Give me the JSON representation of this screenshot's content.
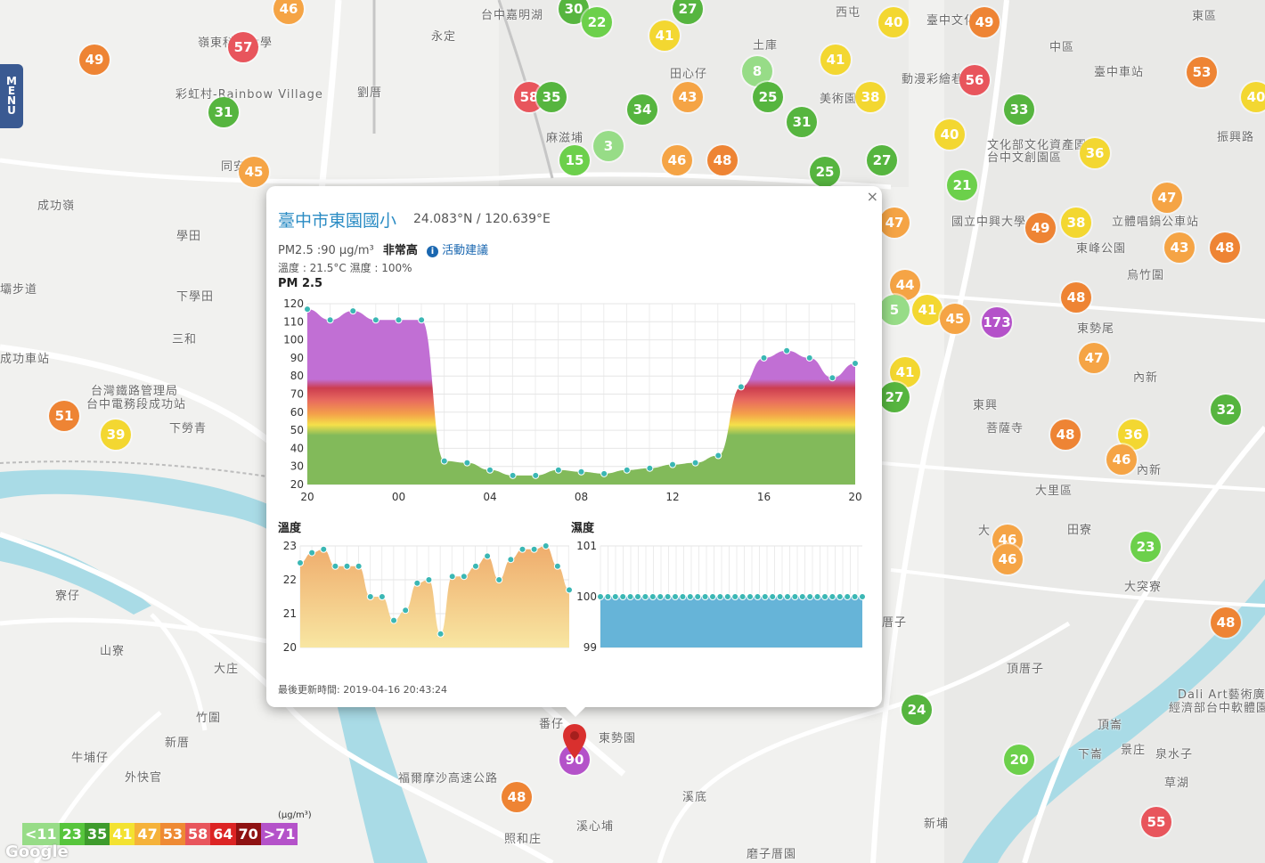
{
  "menu": {
    "letters": [
      "M",
      "E",
      "N",
      "U"
    ]
  },
  "places": [
    {
      "t": "永定",
      "x": 484,
      "y": 30
    },
    {
      "t": "台中嘉明湖",
      "x": 540,
      "y": 6
    },
    {
      "t": "西屯",
      "x": 938,
      "y": 3
    },
    {
      "t": "臺中文化",
      "x": 1040,
      "y": 12
    },
    {
      "t": "東區",
      "x": 1338,
      "y": 7
    },
    {
      "t": "中區",
      "x": 1178,
      "y": 42
    },
    {
      "t": "嶺東科技大學",
      "x": 222,
      "y": 37
    },
    {
      "t": "土庫",
      "x": 845,
      "y": 40
    },
    {
      "t": "田心仔",
      "x": 752,
      "y": 72
    },
    {
      "t": "劉厝",
      "x": 401,
      "y": 93
    },
    {
      "t": "彩虹村-Rainbow Village",
      "x": 197,
      "y": 95
    },
    {
      "t": "麻滋埔",
      "x": 613,
      "y": 144
    },
    {
      "t": "美術園",
      "x": 920,
      "y": 100
    },
    {
      "t": "動漫彩繪巷",
      "x": 1012,
      "y": 78
    },
    {
      "t": "臺中車站",
      "x": 1228,
      "y": 70
    },
    {
      "t": "振興路",
      "x": 1366,
      "y": 143
    },
    {
      "t": "文化部文化資產園區",
      "x": 1108,
      "y": 152
    },
    {
      "t": "台中文創園區",
      "x": 1108,
      "y": 166
    },
    {
      "t": "同安",
      "x": 248,
      "y": 176
    },
    {
      "t": "成功嶺",
      "x": 42,
      "y": 220
    },
    {
      "t": "學田",
      "x": 198,
      "y": 254
    },
    {
      "t": "國立中興大學",
      "x": 1068,
      "y": 238
    },
    {
      "t": "立體唱鍋公車站",
      "x": 1248,
      "y": 238
    },
    {
      "t": "東峰公園",
      "x": 1208,
      "y": 268
    },
    {
      "t": "烏竹圍",
      "x": 1265,
      "y": 298
    },
    {
      "t": "壩步道",
      "x": 0,
      "y": 314
    },
    {
      "t": "下學田",
      "x": 198,
      "y": 322
    },
    {
      "t": "三和",
      "x": 193,
      "y": 370
    },
    {
      "t": "成功車站",
      "x": 0,
      "y": 392
    },
    {
      "t": "東勢尾",
      "x": 1209,
      "y": 358
    },
    {
      "t": "內新",
      "x": 1272,
      "y": 413
    },
    {
      "t": "台灣鐵路管理局",
      "x": 102,
      "y": 428
    },
    {
      "t": "台中電務段成功站",
      "x": 97,
      "y": 443
    },
    {
      "t": "下勞青",
      "x": 190,
      "y": 470
    },
    {
      "t": "東興",
      "x": 1092,
      "y": 444
    },
    {
      "t": "菩薩寺",
      "x": 1107,
      "y": 470
    },
    {
      "t": "內新",
      "x": 1276,
      "y": 517
    },
    {
      "t": "大里區",
      "x": 1162,
      "y": 540
    },
    {
      "t": "田寮",
      "x": 1198,
      "y": 584
    },
    {
      "t": "大突寮",
      "x": 1262,
      "y": 648
    },
    {
      "t": "大",
      "x": 1098,
      "y": 585
    },
    {
      "t": "寮仔",
      "x": 62,
      "y": 658
    },
    {
      "t": "山寮",
      "x": 112,
      "y": 720
    },
    {
      "t": "大庄",
      "x": 240,
      "y": 740
    },
    {
      "t": "厝子",
      "x": 990,
      "y": 688
    },
    {
      "t": "頂厝子",
      "x": 1130,
      "y": 740
    },
    {
      "t": "竹圍",
      "x": 220,
      "y": 795
    },
    {
      "t": "新厝",
      "x": 185,
      "y": 823
    },
    {
      "t": "牛埔仔",
      "x": 80,
      "y": 840
    },
    {
      "t": "外快官",
      "x": 140,
      "y": 862
    },
    {
      "t": "番仔",
      "x": 605,
      "y": 802
    },
    {
      "t": "東勢園",
      "x": 672,
      "y": 818
    },
    {
      "t": "頂崙",
      "x": 1232,
      "y": 803
    },
    {
      "t": "下崙",
      "x": 1210,
      "y": 836
    },
    {
      "t": "景庄",
      "x": 1258,
      "y": 831
    },
    {
      "t": "泉水子",
      "x": 1297,
      "y": 836
    },
    {
      "t": "草湖",
      "x": 1307,
      "y": 868
    },
    {
      "t": "溪底",
      "x": 766,
      "y": 884
    },
    {
      "t": "溪心埔",
      "x": 647,
      "y": 917
    },
    {
      "t": "照和庄",
      "x": 566,
      "y": 931
    },
    {
      "t": "新埔",
      "x": 1037,
      "y": 914
    },
    {
      "t": "磨子厝園",
      "x": 838,
      "y": 948
    },
    {
      "t": "經濟部台中軟體園",
      "x": 1312,
      "y": 784
    },
    {
      "t": "Dali Art藝術廣場",
      "x": 1322,
      "y": 769
    },
    {
      "t": "福爾摩沙高速公路",
      "x": 447,
      "y": 863
    }
  ],
  "markers": [
    {
      "v": "46",
      "x": 324,
      "y": 10,
      "c": "#f5a445"
    },
    {
      "v": "30",
      "x": 644,
      "y": 10,
      "c": "#56b53f"
    },
    {
      "v": "22",
      "x": 670,
      "y": 25,
      "c": "#6cd04b"
    },
    {
      "v": "27",
      "x": 772,
      "y": 10,
      "c": "#56b53f"
    },
    {
      "v": "41",
      "x": 746,
      "y": 40,
      "c": "#f3d731"
    },
    {
      "v": "49",
      "x": 106,
      "y": 67,
      "c": "#ee8434"
    },
    {
      "v": "57",
      "x": 273,
      "y": 53,
      "c": "#e8555c"
    },
    {
      "v": "31",
      "x": 251,
      "y": 126,
      "c": "#56b53f"
    },
    {
      "v": "58",
      "x": 594,
      "y": 109,
      "c": "#e8555c"
    },
    {
      "v": "35",
      "x": 619,
      "y": 109,
      "c": "#56b53f"
    },
    {
      "v": "8",
      "x": 850,
      "y": 80,
      "c": "#97dc87"
    },
    {
      "v": "34",
      "x": 721,
      "y": 123,
      "c": "#56b53f"
    },
    {
      "v": "43",
      "x": 772,
      "y": 109,
      "c": "#f5a445"
    },
    {
      "v": "25",
      "x": 862,
      "y": 109,
      "c": "#56b53f"
    },
    {
      "v": "31",
      "x": 900,
      "y": 137,
      "c": "#56b53f"
    },
    {
      "v": "3",
      "x": 683,
      "y": 164,
      "c": "#97dc87"
    },
    {
      "v": "15",
      "x": 645,
      "y": 180,
      "c": "#6cd04b"
    },
    {
      "v": "46",
      "x": 760,
      "y": 180,
      "c": "#f5a445"
    },
    {
      "v": "48",
      "x": 811,
      "y": 180,
      "c": "#ee8434"
    },
    {
      "v": "25",
      "x": 926,
      "y": 193,
      "c": "#56b53f"
    },
    {
      "v": "27",
      "x": 990,
      "y": 180,
      "c": "#56b53f"
    },
    {
      "v": "40",
      "x": 1003,
      "y": 25,
      "c": "#f3d731"
    },
    {
      "v": "49",
      "x": 1105,
      "y": 25,
      "c": "#ee8434"
    },
    {
      "v": "41",
      "x": 938,
      "y": 67,
      "c": "#f3d731"
    },
    {
      "v": "38",
      "x": 977,
      "y": 109,
      "c": "#f3d731"
    },
    {
      "v": "56",
      "x": 1094,
      "y": 90,
      "c": "#e8555c"
    },
    {
      "v": "53",
      "x": 1349,
      "y": 81,
      "c": "#ee8434"
    },
    {
      "v": "40",
      "x": 1410,
      "y": 109,
      "c": "#f3d731"
    },
    {
      "v": "33",
      "x": 1144,
      "y": 123,
      "c": "#56b53f"
    },
    {
      "v": "40",
      "x": 1066,
      "y": 151,
      "c": "#f3d731"
    },
    {
      "v": "36",
      "x": 1229,
      "y": 172,
      "c": "#f3d731"
    },
    {
      "v": "21",
      "x": 1080,
      "y": 208,
      "c": "#6cd04b"
    },
    {
      "v": "47",
      "x": 1310,
      "y": 222,
      "c": "#f5a445"
    },
    {
      "v": "45",
      "x": 285,
      "y": 193,
      "c": "#f5a445"
    },
    {
      "v": "47",
      "x": 1004,
      "y": 250,
      "c": "#f5a445"
    },
    {
      "v": "49",
      "x": 1168,
      "y": 256,
      "c": "#ee8434"
    },
    {
      "v": "38",
      "x": 1208,
      "y": 250,
      "c": "#f3d731"
    },
    {
      "v": "43",
      "x": 1324,
      "y": 278,
      "c": "#f5a445"
    },
    {
      "v": "48",
      "x": 1375,
      "y": 278,
      "c": "#ee8434"
    },
    {
      "v": "44",
      "x": 1016,
      "y": 320,
      "c": "#f5a445"
    },
    {
      "v": "48",
      "x": 1208,
      "y": 334,
      "c": "#ee8434"
    },
    {
      "v": "5",
      "x": 1004,
      "y": 348,
      "c": "#97dc87"
    },
    {
      "v": "41",
      "x": 1041,
      "y": 348,
      "c": "#f3d731"
    },
    {
      "v": "45",
      "x": 1072,
      "y": 358,
      "c": "#f5a445"
    },
    {
      "v": "173",
      "x": 1119,
      "y": 362,
      "c": "#b452c9"
    },
    {
      "v": "47",
      "x": 1228,
      "y": 402,
      "c": "#f5a445"
    },
    {
      "v": "41",
      "x": 1016,
      "y": 418,
      "c": "#f3d731"
    },
    {
      "v": "27",
      "x": 1004,
      "y": 446,
      "c": "#56b53f"
    },
    {
      "v": "51",
      "x": 72,
      "y": 467,
      "c": "#ee8434"
    },
    {
      "v": "39",
      "x": 130,
      "y": 488,
      "c": "#f3d731"
    },
    {
      "v": "48",
      "x": 1196,
      "y": 488,
      "c": "#ee8434"
    },
    {
      "v": "36",
      "x": 1272,
      "y": 488,
      "c": "#f3d731"
    },
    {
      "v": "32",
      "x": 1376,
      "y": 460,
      "c": "#56b53f"
    },
    {
      "v": "46",
      "x": 1259,
      "y": 516,
      "c": "#f5a445"
    },
    {
      "v": "46",
      "x": 1131,
      "y": 606,
      "c": "#f5a445"
    },
    {
      "v": "46",
      "x": 1131,
      "y": 628,
      "c": "#f5a445"
    },
    {
      "v": "23",
      "x": 1286,
      "y": 614,
      "c": "#6cd04b"
    },
    {
      "v": "48",
      "x": 1376,
      "y": 699,
      "c": "#ee8434"
    },
    {
      "v": "24",
      "x": 1029,
      "y": 797,
      "c": "#56b53f"
    },
    {
      "v": "20",
      "x": 1144,
      "y": 853,
      "c": "#6cd04b"
    },
    {
      "v": "90",
      "x": 645,
      "y": 853,
      "c": "#b452c9"
    },
    {
      "v": "48",
      "x": 580,
      "y": 895,
      "c": "#ee8434"
    },
    {
      "v": "55",
      "x": 1298,
      "y": 923,
      "c": "#e8555c"
    }
  ],
  "popup": {
    "close": "×",
    "title": "臺中市東園國小",
    "coords": "24.083°N / 120.639°E",
    "pm_label": "PM2.5 :90 μg/m³",
    "pm_level": "非常高",
    "advice": "活動建議",
    "info_icon": "i",
    "env": "溫度 : 21.5°C 濕度 : 100%",
    "updated": "最後更新時間: 2019-04-16 20:43:24",
    "pm_title": "PM 2.5",
    "temp_title": "溫度",
    "hum_title": "濕度"
  },
  "chart_data": [
    {
      "type": "area",
      "title": "PM 2.5",
      "ylim": [
        20,
        120
      ],
      "yticks": [
        "20",
        "30",
        "40",
        "50",
        "60",
        "70",
        "80",
        "90",
        "100",
        "110",
        "120"
      ],
      "xticks": [
        "20",
        "00",
        "04",
        "08",
        "12",
        "16",
        "20"
      ],
      "series": [
        {
          "values": [
            117,
            111,
            116,
            111,
            111,
            111,
            33,
            32,
            28,
            25,
            25,
            28,
            27,
            26,
            28,
            29,
            31,
            32,
            36,
            74,
            90,
            94,
            90,
            79,
            87
          ]
        }
      ]
    },
    {
      "type": "area",
      "title": "溫度",
      "ylim": [
        20,
        23
      ],
      "yticks": [
        "20",
        "21",
        "22",
        "23"
      ],
      "series": [
        {
          "values": [
            22.5,
            22.8,
            22.9,
            22.4,
            22.4,
            22.4,
            21.5,
            21.5,
            20.8,
            21.1,
            21.9,
            22.0,
            20.4,
            22.1,
            22.1,
            22.4,
            22.7,
            22.0,
            22.6,
            22.9,
            22.9,
            23.0,
            22.4,
            21.7
          ]
        }
      ]
    },
    {
      "type": "area",
      "title": "濕度",
      "ylim": [
        99,
        101
      ],
      "yticks": [
        "99",
        "100",
        "101"
      ],
      "series": [
        {
          "values": [
            100,
            100,
            100,
            100,
            100,
            100,
            100,
            100,
            100,
            100,
            100,
            100,
            100,
            100,
            100,
            100,
            100,
            100,
            100,
            100,
            100,
            100,
            100,
            100,
            100,
            100,
            100,
            100,
            100,
            100,
            100,
            100,
            100,
            100,
            100,
            100
          ]
        }
      ]
    }
  ],
  "legend": {
    "unit": "(μg/m³)",
    "items": [
      {
        "t": "<11",
        "c": "#97dc87"
      },
      {
        "t": "23",
        "c": "#57c53c"
      },
      {
        "t": "35",
        "c": "#3e9b2c"
      },
      {
        "t": "41",
        "c": "#f3e231"
      },
      {
        "t": "47",
        "c": "#f5b23a"
      },
      {
        "t": "53",
        "c": "#ee8a34"
      },
      {
        "t": "58",
        "c": "#e8555c"
      },
      {
        "t": "64",
        "c": "#dc2424"
      },
      {
        "t": "70",
        "c": "#8e1212"
      },
      {
        "t": ">71",
        "c": "#b452c9"
      }
    ]
  },
  "attribution": "Google"
}
